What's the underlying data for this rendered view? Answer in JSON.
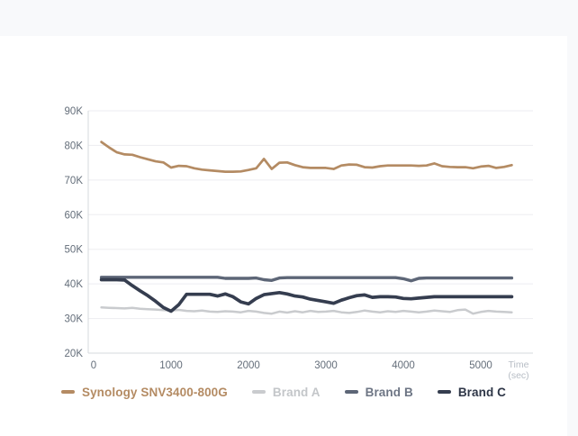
{
  "page": {
    "background_color": "#f8f9fb",
    "card_color": "#ffffff"
  },
  "chart_data": {
    "type": "line",
    "title": "",
    "xlabel": "Time",
    "xunit": "(sec)",
    "grid": "horizontal",
    "legend_position": "bottom",
    "x_axis": {
      "min": 0,
      "max": 5700,
      "tick_values": [
        0,
        1000,
        2000,
        3000,
        4000,
        5000
      ],
      "tick_labels": [
        "0",
        "1000",
        "2000",
        "3000",
        "4000",
        "5000"
      ]
    },
    "y_axis": {
      "min": 20000,
      "max": 90000,
      "tick_values": [
        90000,
        80000,
        70000,
        60000,
        50000,
        40000,
        30000,
        20000
      ],
      "tick_labels": [
        "90K",
        "80K",
        "70K",
        "60K",
        "50K",
        "40K",
        "30K",
        "20K"
      ]
    },
    "x_start": 100,
    "x_step": 100,
    "colors": {
      "grid": "#ededf0",
      "axis": "#d5d8dc",
      "tick_text": "#646e7a",
      "time_label": "#b7bdc5"
    },
    "series": [
      {
        "name": "Synology SNV3400-800G",
        "color": "#b48b63",
        "label_color": "#b48b63",
        "stroke_width": 2.7,
        "values": [
          81000,
          79400,
          78000,
          77400,
          77300,
          76600,
          76000,
          75400,
          75100,
          73600,
          74100,
          74000,
          73400,
          73000,
          72800,
          72600,
          72400,
          72400,
          72500,
          72900,
          73400,
          76100,
          73200,
          75000,
          75100,
          74300,
          73700,
          73500,
          73500,
          73500,
          73200,
          74200,
          74500,
          74400,
          73700,
          73600,
          74000,
          74200,
          74200,
          74200,
          74200,
          74100,
          74200,
          74800,
          74000,
          73800,
          73700,
          73700,
          73400,
          73900,
          74100,
          73500,
          73800,
          74300
        ]
      },
      {
        "name": "Brand A",
        "color": "#c9cbce",
        "label_color": "#c3c6c9",
        "stroke_width": 2.5,
        "values": [
          33200,
          33100,
          33000,
          32900,
          33100,
          32800,
          32700,
          32600,
          32400,
          32300,
          32500,
          32200,
          32100,
          32300,
          32000,
          31900,
          32100,
          32000,
          31800,
          32200,
          32000,
          31600,
          31400,
          32000,
          31700,
          32100,
          31800,
          32200,
          31900,
          32000,
          32200,
          31800,
          31600,
          31900,
          32300,
          32000,
          31800,
          32100,
          31900,
          32200,
          32000,
          31800,
          32000,
          32300,
          32100,
          31900,
          32400,
          32600,
          31400,
          31900,
          32200,
          32000,
          31900,
          31800
        ]
      },
      {
        "name": "Brand B",
        "color": "#5d6677",
        "label_color": "#6d7584",
        "stroke_width": 3.4,
        "values": [
          41900,
          41900,
          41900,
          41900,
          41900,
          41900,
          41900,
          41900,
          41900,
          41900,
          41900,
          41900,
          41900,
          41900,
          41900,
          41900,
          41600,
          41600,
          41600,
          41600,
          41700,
          41200,
          41000,
          41700,
          41800,
          41800,
          41800,
          41800,
          41800,
          41800,
          41800,
          41800,
          41800,
          41800,
          41800,
          41800,
          41800,
          41800,
          41800,
          41500,
          40900,
          41600,
          41700,
          41700,
          41700,
          41700,
          41700,
          41700,
          41700,
          41700,
          41700,
          41700,
          41700,
          41700
        ]
      },
      {
        "name": "Brand C",
        "color": "#353d4f",
        "label_color": "#2e3647",
        "stroke_width": 3.7,
        "values": [
          41200,
          41200,
          41200,
          41100,
          39500,
          38000,
          36600,
          35000,
          33200,
          32100,
          34000,
          37000,
          37000,
          37000,
          37000,
          36500,
          37100,
          36300,
          34800,
          34200,
          35800,
          36900,
          37200,
          37500,
          37100,
          36500,
          36200,
          35600,
          35200,
          34800,
          34400,
          35300,
          36000,
          36600,
          36800,
          36100,
          36300,
          36300,
          36200,
          35800,
          35700,
          35900,
          36100,
          36300,
          36300,
          36300,
          36300,
          36300,
          36300,
          36300,
          36300,
          36300,
          36300,
          36300
        ]
      }
    ]
  }
}
